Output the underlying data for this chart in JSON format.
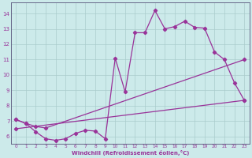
{
  "bg_color": "#cceaea",
  "line_color": "#993399",
  "grid_color": "#aacccc",
  "xlabel": "Windchill (Refroidissement éolien,°C)",
  "xlim": [
    -0.5,
    23.5
  ],
  "ylim": [
    5.5,
    14.7
  ],
  "yticks": [
    6,
    7,
    8,
    9,
    10,
    11,
    12,
    13,
    14
  ],
  "xticks": [
    0,
    1,
    2,
    3,
    4,
    5,
    6,
    7,
    8,
    9,
    10,
    11,
    12,
    13,
    14,
    15,
    16,
    17,
    18,
    19,
    20,
    21,
    22,
    23
  ],
  "curve1_x": [
    0,
    1,
    2,
    3,
    4,
    5,
    6,
    7,
    8,
    9,
    10,
    11,
    12,
    13,
    14,
    15,
    16,
    17,
    18,
    19,
    20,
    21,
    22,
    23
  ],
  "curve1_y": [
    7.1,
    6.85,
    6.3,
    5.85,
    5.75,
    5.85,
    6.2,
    6.4,
    6.35,
    5.85,
    11.1,
    8.9,
    12.75,
    12.75,
    14.2,
    13.0,
    13.15,
    13.5,
    13.1,
    13.05,
    11.5,
    11.0,
    9.5,
    8.35
  ],
  "curve2_x": [
    0,
    1,
    2,
    3,
    23
  ],
  "curve2_y": [
    7.1,
    6.85,
    6.65,
    6.55,
    11.0
  ],
  "curve3_x": [
    0,
    23
  ],
  "curve3_y": [
    6.5,
    8.35
  ],
  "marker": "D",
  "markersize": 2.2,
  "linewidth": 0.9
}
